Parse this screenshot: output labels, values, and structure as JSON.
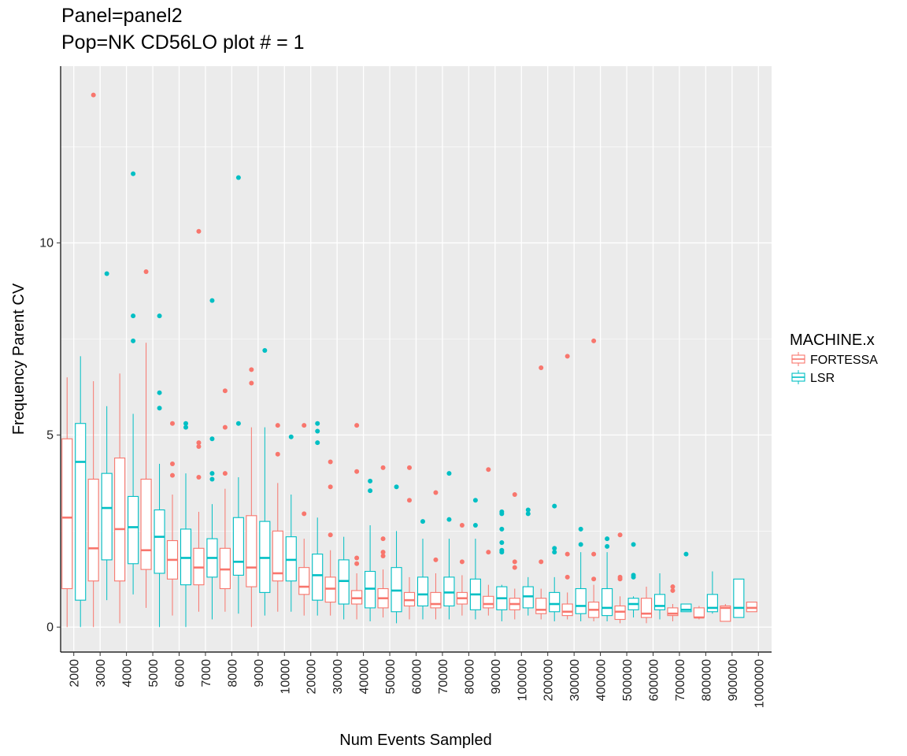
{
  "chart_data": {
    "type": "boxplot",
    "title_line1": "Panel=panel2",
    "title_line2": "Pop=NK CD56LO plot # = 1",
    "xlabel": "Num Events Sampled",
    "ylabel": "Frequency Parent CV",
    "ylim": [
      -0.65,
      14.6
    ],
    "yticks": [
      0,
      5,
      10
    ],
    "ytick_labels": [
      "0",
      "5",
      "10"
    ],
    "categories": [
      "2000",
      "3000",
      "4000",
      "5000",
      "6000",
      "7000",
      "8000",
      "9000",
      "10000",
      "20000",
      "30000",
      "40000",
      "50000",
      "60000",
      "70000",
      "80000",
      "90000",
      "100000",
      "200000",
      "300000",
      "400000",
      "500000",
      "600000",
      "700000",
      "800000",
      "900000",
      "1000000"
    ],
    "legend": {
      "title": "MACHINE.x",
      "entries": [
        "FORTESSA",
        "LSR"
      ]
    },
    "colors": {
      "FORTESSA": "#F8766D",
      "LSR": "#00BFC4",
      "panel_bg": "#EBEBEB",
      "grid": "#FFFFFF"
    },
    "series": [
      {
        "name": "FORTESSA",
        "boxes": [
          {
            "min": 0.0,
            "q1": 1.0,
            "median": 2.85,
            "q3": 4.9,
            "max": 6.5,
            "outliers": []
          },
          {
            "min": 0.0,
            "q1": 1.2,
            "median": 2.05,
            "q3": 3.85,
            "max": 6.4,
            "outliers": [
              13.85
            ]
          },
          {
            "min": 0.1,
            "q1": 1.2,
            "median": 2.55,
            "q3": 4.4,
            "max": 6.6,
            "outliers": []
          },
          {
            "min": 0.5,
            "q1": 1.5,
            "median": 2.0,
            "q3": 3.85,
            "max": 7.4,
            "outliers": [
              9.25
            ]
          },
          {
            "min": 0.3,
            "q1": 1.25,
            "median": 1.75,
            "q3": 2.25,
            "max": 3.45,
            "outliers": [
              5.3,
              4.25,
              3.95
            ]
          },
          {
            "min": 0.4,
            "q1": 1.1,
            "median": 1.55,
            "q3": 2.05,
            "max": 3.0,
            "outliers": [
              10.3,
              4.8,
              4.7,
              3.9
            ]
          },
          {
            "min": 0.4,
            "q1": 1.0,
            "median": 1.5,
            "q3": 2.05,
            "max": 3.6,
            "outliers": [
              6.15,
              5.2,
              4.0
            ]
          },
          {
            "min": 0.0,
            "q1": 1.05,
            "median": 1.55,
            "q3": 2.9,
            "max": 5.2,
            "outliers": [
              6.7,
              6.35
            ]
          },
          {
            "min": 0.4,
            "q1": 1.2,
            "median": 1.4,
            "q3": 2.5,
            "max": 3.75,
            "outliers": [
              5.25,
              4.5
            ]
          },
          {
            "min": 0.3,
            "q1": 0.85,
            "median": 1.05,
            "q3": 1.55,
            "max": 2.3,
            "outliers": [
              5.25,
              2.95
            ]
          },
          {
            "min": 0.3,
            "q1": 0.65,
            "median": 1.0,
            "q3": 1.3,
            "max": 2.0,
            "outliers": [
              4.3,
              3.65,
              2.4
            ]
          },
          {
            "min": 0.2,
            "q1": 0.6,
            "median": 0.75,
            "q3": 0.95,
            "max": 1.4,
            "outliers": [
              5.25,
              4.05,
              1.8,
              1.65
            ]
          },
          {
            "min": 0.25,
            "q1": 0.5,
            "median": 0.75,
            "q3": 1.0,
            "max": 1.5,
            "outliers": [
              4.15,
              2.3,
              1.95,
              1.85
            ]
          },
          {
            "min": 0.2,
            "q1": 0.55,
            "median": 0.7,
            "q3": 0.9,
            "max": 1.3,
            "outliers": [
              4.15,
              3.3
            ]
          },
          {
            "min": 0.2,
            "q1": 0.5,
            "median": 0.6,
            "q3": 0.9,
            "max": 1.4,
            "outliers": [
              3.5,
              1.75
            ]
          },
          {
            "min": 0.3,
            "q1": 0.6,
            "median": 0.75,
            "q3": 0.9,
            "max": 1.35,
            "outliers": [
              2.65,
              1.7
            ]
          },
          {
            "min": 0.3,
            "q1": 0.5,
            "median": 0.6,
            "q3": 0.8,
            "max": 1.1,
            "outliers": [
              4.1,
              1.95
            ]
          },
          {
            "min": 0.2,
            "q1": 0.45,
            "median": 0.6,
            "q3": 0.75,
            "max": 1.0,
            "outliers": [
              3.45,
              1.7,
              1.55
            ]
          },
          {
            "min": 0.2,
            "q1": 0.35,
            "median": 0.45,
            "q3": 0.75,
            "max": 1.0,
            "outliers": [
              6.75,
              1.7
            ]
          },
          {
            "min": 0.2,
            "q1": 0.3,
            "median": 0.4,
            "q3": 0.6,
            "max": 0.9,
            "outliers": [
              7.05,
              1.9,
              1.3
            ]
          },
          {
            "min": 0.15,
            "q1": 0.25,
            "median": 0.45,
            "q3": 0.65,
            "max": 1.1,
            "outliers": [
              7.45,
              1.9,
              1.25
            ]
          },
          {
            "min": 0.1,
            "q1": 0.2,
            "median": 0.4,
            "q3": 0.55,
            "max": 0.8,
            "outliers": [
              2.4,
              1.3,
              1.25
            ]
          },
          {
            "min": 0.1,
            "q1": 0.25,
            "median": 0.35,
            "q3": 0.75,
            "max": 1.05,
            "outliers": []
          },
          {
            "min": 0.15,
            "q1": 0.3,
            "median": 0.35,
            "q3": 0.5,
            "max": 0.6,
            "outliers": [
              1.05,
              0.95
            ]
          },
          {
            "min": 0.2,
            "q1": 0.25,
            "median": 0.25,
            "q3": 0.5,
            "max": 0.55,
            "outliers": []
          },
          {
            "min": 0.15,
            "q1": 0.15,
            "median": 0.5,
            "q3": 0.55,
            "max": 0.6,
            "outliers": []
          },
          {
            "min": 0.4,
            "q1": 0.4,
            "median": 0.5,
            "q3": 0.65,
            "max": 0.65,
            "outliers": []
          }
        ]
      },
      {
        "name": "LSR",
        "boxes": [
          {
            "min": 0.0,
            "q1": 0.7,
            "median": 4.3,
            "q3": 5.3,
            "max": 7.05,
            "outliers": []
          },
          {
            "min": 0.7,
            "q1": 1.75,
            "median": 3.1,
            "q3": 4.0,
            "max": 5.75,
            "outliers": [
              9.2
            ]
          },
          {
            "min": 0.85,
            "q1": 1.65,
            "median": 2.6,
            "q3": 3.4,
            "max": 5.55,
            "outliers": [
              11.8,
              8.1,
              7.45
            ]
          },
          {
            "min": 0.0,
            "q1": 1.4,
            "median": 2.35,
            "q3": 3.05,
            "max": 4.25,
            "outliers": [
              8.1,
              6.1,
              5.7
            ]
          },
          {
            "min": 0.0,
            "q1": 1.1,
            "median": 1.8,
            "q3": 2.55,
            "max": 4.0,
            "outliers": [
              5.3,
              5.2
            ]
          },
          {
            "min": 0.2,
            "q1": 1.3,
            "median": 1.8,
            "q3": 2.3,
            "max": 3.2,
            "outliers": [
              8.5,
              4.9,
              4.0,
              3.85
            ]
          },
          {
            "min": 0.35,
            "q1": 1.35,
            "median": 1.7,
            "q3": 2.85,
            "max": 3.9,
            "outliers": [
              11.7,
              5.3
            ]
          },
          {
            "min": 0.3,
            "q1": 0.9,
            "median": 1.8,
            "q3": 2.75,
            "max": 5.2,
            "outliers": [
              7.2
            ]
          },
          {
            "min": 0.4,
            "q1": 1.2,
            "median": 1.75,
            "q3": 2.35,
            "max": 3.45,
            "outliers": [
              4.95
            ]
          },
          {
            "min": 0.3,
            "q1": 0.7,
            "median": 1.35,
            "q3": 1.9,
            "max": 2.85,
            "outliers": [
              5.3,
              5.1,
              4.8
            ]
          },
          {
            "min": 0.2,
            "q1": 0.6,
            "median": 1.2,
            "q3": 1.75,
            "max": 2.35,
            "outliers": []
          },
          {
            "min": 0.15,
            "q1": 0.5,
            "median": 1.0,
            "q3": 1.45,
            "max": 2.65,
            "outliers": [
              3.8,
              3.55
            ]
          },
          {
            "min": 0.1,
            "q1": 0.4,
            "median": 0.95,
            "q3": 1.55,
            "max": 2.5,
            "outliers": [
              3.65
            ]
          },
          {
            "min": 0.2,
            "q1": 0.55,
            "median": 0.85,
            "q3": 1.3,
            "max": 2.3,
            "outliers": [
              2.75
            ]
          },
          {
            "min": 0.2,
            "q1": 0.55,
            "median": 0.9,
            "q3": 1.3,
            "max": 2.3,
            "outliers": [
              4.0,
              2.8
            ]
          },
          {
            "min": 0.2,
            "q1": 0.45,
            "median": 0.85,
            "q3": 1.25,
            "max": 2.3,
            "outliers": [
              3.3,
              2.65
            ]
          },
          {
            "min": 0.15,
            "q1": 0.45,
            "median": 0.75,
            "q3": 1.05,
            "max": 1.1,
            "outliers": [
              3.0,
              2.95,
              2.55,
              2.2,
              2.0,
              1.95
            ]
          },
          {
            "min": 0.3,
            "q1": 0.5,
            "median": 0.8,
            "q3": 1.05,
            "max": 1.3,
            "outliers": [
              3.05,
              2.95
            ]
          },
          {
            "min": 0.15,
            "q1": 0.4,
            "median": 0.6,
            "q3": 0.9,
            "max": 1.3,
            "outliers": [
              3.15,
              2.05,
              1.95
            ]
          },
          {
            "min": 0.15,
            "q1": 0.35,
            "median": 0.55,
            "q3": 1.0,
            "max": 1.95,
            "outliers": [
              2.55,
              2.15
            ]
          },
          {
            "min": 0.15,
            "q1": 0.3,
            "median": 0.5,
            "q3": 1.0,
            "max": 1.95,
            "outliers": [
              2.3,
              2.1
            ]
          },
          {
            "min": 0.25,
            "q1": 0.45,
            "median": 0.6,
            "q3": 0.75,
            "max": 0.8,
            "outliers": [
              2.15,
              1.35,
              1.3
            ]
          },
          {
            "min": 0.2,
            "q1": 0.45,
            "median": 0.55,
            "q3": 0.85,
            "max": 1.4,
            "outliers": []
          },
          {
            "min": 0.4,
            "q1": 0.4,
            "median": 0.45,
            "q3": 0.6,
            "max": 0.6,
            "outliers": [
              1.9
            ]
          },
          {
            "min": 0.35,
            "q1": 0.4,
            "median": 0.5,
            "q3": 0.85,
            "max": 1.45,
            "outliers": []
          },
          {
            "min": 0.25,
            "q1": 0.25,
            "median": 0.5,
            "q3": 1.25,
            "max": 1.25,
            "outliers": []
          },
          null
        ]
      }
    ]
  }
}
